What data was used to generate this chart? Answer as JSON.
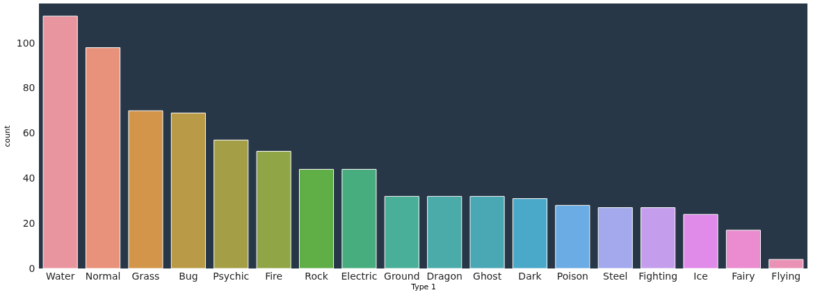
{
  "chart_data": {
    "type": "bar",
    "xlabel": "Type 1",
    "ylabel": "count",
    "categories": [
      "Water",
      "Normal",
      "Grass",
      "Bug",
      "Psychic",
      "Fire",
      "Rock",
      "Electric",
      "Ground",
      "Dragon",
      "Ghost",
      "Dark",
      "Poison",
      "Steel",
      "Fighting",
      "Ice",
      "Fairy",
      "Flying"
    ],
    "values": [
      112,
      98,
      70,
      69,
      57,
      52,
      44,
      44,
      32,
      32,
      32,
      31,
      28,
      27,
      27,
      24,
      17,
      4
    ],
    "colors": [
      "#e8959f",
      "#e8927c",
      "#d39549",
      "#b99b47",
      "#a49e47",
      "#8fa546",
      "#5fae46",
      "#48ad7e",
      "#4aaf98",
      "#4aaba9",
      "#4aa8b5",
      "#4aa8c8",
      "#6aace3",
      "#a3a9ec",
      "#c49ded",
      "#e08bea",
      "#ea8ccf",
      "#e992b6"
    ],
    "ylim": [
      0,
      117.6
    ],
    "yticks": [
      0,
      20,
      40,
      60,
      80,
      100
    ],
    "grid": false
  }
}
